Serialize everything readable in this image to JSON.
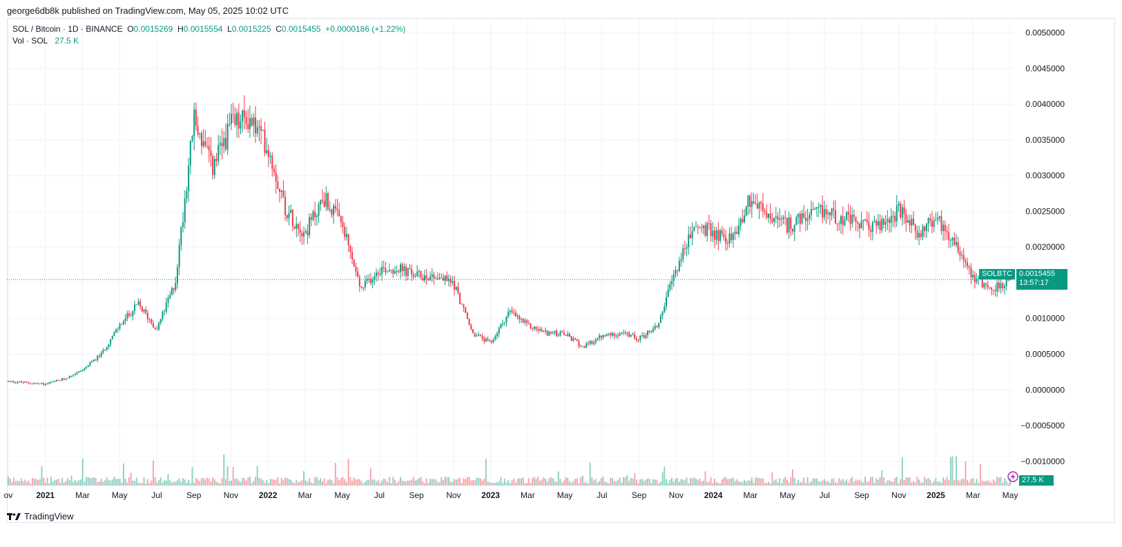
{
  "header": {
    "published": "george6db8k published on TradingView.com, May 05, 2025 10:02 UTC"
  },
  "legend": {
    "symbol": "SOL / Bitcoin · 1D · BINANCE",
    "open_label": "O",
    "open": "0.0015269",
    "high_label": "H",
    "high": "0.0015554",
    "low_label": "L",
    "low": "0.0015225",
    "close_label": "C",
    "close": "0.0015455",
    "change": "+0.0000186 (+1.22%)",
    "vol_label": "Vol · SOL",
    "vol_value": "27.5 K"
  },
  "last_price": {
    "symbol_tag": "SOLBTC",
    "price": "0.0015455",
    "countdown": "13:57:17",
    "vol_tag": "27.5 K"
  },
  "footer": {
    "brand": "TradingView"
  },
  "colors": {
    "up": "#089981",
    "down": "#f23645",
    "grid": "#f0f3fa"
  },
  "chart_data": {
    "type": "candlestick",
    "title": "SOL / Bitcoin · 1D · BINANCE",
    "ylim": [
      -0.00135,
      0.0052
    ],
    "y_ticks": [
      "0.0050000",
      "0.0045000",
      "0.0040000",
      "0.0035000",
      "0.0030000",
      "0.0025000",
      "0.0020000",
      "0.0015000",
      "0.0010000",
      "0.0005000",
      "0.0000000",
      "−0.0005000",
      "−0.0010000"
    ],
    "y_tick_values": [
      0.005,
      0.0045,
      0.004,
      0.0035,
      0.003,
      0.0025,
      0.002,
      0.0015,
      0.001,
      0.0005,
      0,
      -0.0005,
      -0.001
    ],
    "x_ticks": [
      {
        "label": "ov",
        "t": 0,
        "bold": false
      },
      {
        "label": "2021",
        "t": 2,
        "bold": true
      },
      {
        "label": "Mar",
        "t": 4,
        "bold": false
      },
      {
        "label": "May",
        "t": 6,
        "bold": false
      },
      {
        "label": "Jul",
        "t": 8,
        "bold": false
      },
      {
        "label": "Sep",
        "t": 10,
        "bold": false
      },
      {
        "label": "Nov",
        "t": 12,
        "bold": false
      },
      {
        "label": "2022",
        "t": 14,
        "bold": true
      },
      {
        "label": "Mar",
        "t": 16,
        "bold": false
      },
      {
        "label": "May",
        "t": 18,
        "bold": false
      },
      {
        "label": "Jul",
        "t": 20,
        "bold": false
      },
      {
        "label": "Sep",
        "t": 22,
        "bold": false
      },
      {
        "label": "Nov",
        "t": 24,
        "bold": false
      },
      {
        "label": "2023",
        "t": 26,
        "bold": true
      },
      {
        "label": "Mar",
        "t": 28,
        "bold": false
      },
      {
        "label": "May",
        "t": 30,
        "bold": false
      },
      {
        "label": "Jul",
        "t": 32,
        "bold": false
      },
      {
        "label": "Sep",
        "t": 34,
        "bold": false
      },
      {
        "label": "Nov",
        "t": 36,
        "bold": false
      },
      {
        "label": "2024",
        "t": 38,
        "bold": true
      },
      {
        "label": "Mar",
        "t": 40,
        "bold": false
      },
      {
        "label": "May",
        "t": 42,
        "bold": false
      },
      {
        "label": "Jul",
        "t": 44,
        "bold": false
      },
      {
        "label": "Sep",
        "t": 46,
        "bold": false
      },
      {
        "label": "Nov",
        "t": 48,
        "bold": false
      },
      {
        "label": "2025",
        "t": 50,
        "bold": true
      },
      {
        "label": "Mar",
        "t": 52,
        "bold": false
      },
      {
        "label": "May",
        "t": 54,
        "bold": false
      }
    ],
    "last_price": 0.0015455,
    "price_path_months": [
      0,
      1,
      2,
      3,
      4,
      5,
      6,
      7,
      8,
      9,
      10,
      11,
      12,
      13,
      14,
      15,
      16,
      17,
      18,
      19,
      20,
      21,
      22,
      23,
      24,
      25,
      26,
      27,
      28,
      29,
      30,
      31,
      32,
      33,
      34,
      35,
      36,
      37,
      38,
      39,
      40,
      41,
      42,
      43,
      44,
      45,
      46,
      47,
      48,
      49,
      50,
      51,
      52,
      53,
      54
    ],
    "price_path_values": [
      0.00012,
      0.0001,
      8e-05,
      0.00015,
      0.00028,
      0.0005,
      0.0009,
      0.0012,
      0.00085,
      0.0015,
      0.0038,
      0.0031,
      0.0037,
      0.0038,
      0.0034,
      0.0025,
      0.0022,
      0.0027,
      0.0023,
      0.0014,
      0.0017,
      0.0017,
      0.0016,
      0.0016,
      0.0015,
      0.0008,
      0.00065,
      0.0011,
      0.0009,
      0.0008,
      0.00078,
      0.0006,
      0.00075,
      0.0008,
      0.00072,
      0.0009,
      0.0017,
      0.0023,
      0.0022,
      0.0021,
      0.0027,
      0.0024,
      0.0023,
      0.0024,
      0.0025,
      0.0024,
      0.0023,
      0.0023,
      0.0025,
      0.0022,
      0.0024,
      0.0021,
      0.0016,
      0.0014,
      0.00155
    ]
  }
}
